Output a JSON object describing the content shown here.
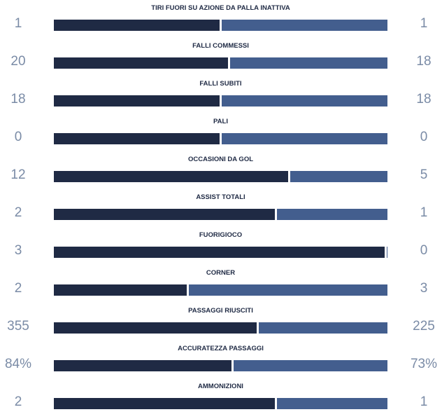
{
  "stats": [
    {
      "label": "TIRI FUORI SU AZIONE DA PALLA INATTIVA",
      "home": "1",
      "away": "1",
      "home_share": 0.5
    },
    {
      "label": "FALLI COMMESSI",
      "home": "20",
      "away": "18",
      "home_share": 0.526
    },
    {
      "label": "FALLI SUBITI",
      "home": "18",
      "away": "18",
      "home_share": 0.5
    },
    {
      "label": "PALI",
      "home": "0",
      "away": "0",
      "home_share": 0.5
    },
    {
      "label": "OCCASIONI DA GOL",
      "home": "12",
      "away": "5",
      "home_share": 0.706
    },
    {
      "label": "ASSIST TOTALI",
      "home": "2",
      "away": "1",
      "home_share": 0.667
    },
    {
      "label": "FUORIGIOCO",
      "home": "3",
      "away": "0",
      "home_share": 1.0
    },
    {
      "label": "CORNER",
      "home": "2",
      "away": "3",
      "home_share": 0.4
    },
    {
      "label": "PASSAGGI RIUSCITI",
      "home": "355",
      "away": "225",
      "home_share": 0.612
    },
    {
      "label": "ACCURATEZZA PASSAGGI",
      "home": "84%",
      "away": "73%",
      "home_share": 0.535
    },
    {
      "label": "AMMONIZIONI",
      "home": "2",
      "away": "1",
      "home_share": 0.667
    }
  ],
  "colors": {
    "home_bar": "#1f2a44",
    "away_bar": "#435e8e",
    "value_text": "#7a8ba6",
    "label_text": "#1f2a44"
  }
}
